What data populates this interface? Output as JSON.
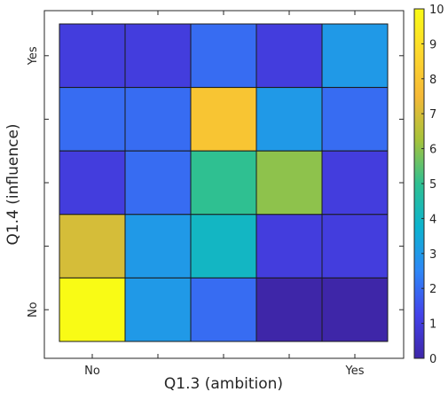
{
  "chart_data": {
    "type": "heatmap",
    "title": "",
    "xlabel": "Q1.3 (ambition)",
    "ylabel": "Q1.4 (influence)",
    "x_tick_labels": [
      "No",
      "",
      "",
      "",
      "Yes"
    ],
    "y_tick_labels_bottom_to_top": [
      "No",
      "",
      "",
      "",
      "Yes"
    ],
    "rows_top_to_bottom": [
      [
        1,
        1,
        2,
        1,
        3
      ],
      [
        2,
        2,
        8,
        3,
        2
      ],
      [
        1,
        2,
        5,
        6,
        1
      ],
      [
        7,
        3,
        4,
        1,
        1
      ],
      [
        10,
        3,
        2,
        0,
        0
      ]
    ],
    "color_limits": [
      0,
      10
    ],
    "colorbar_ticks": [
      "0",
      "1",
      "2",
      "3",
      "4",
      "5",
      "6",
      "7",
      "8",
      "9",
      "10"
    ],
    "colormap": "parula",
    "colormap_stops": [
      "#3e26a8",
      "#4443ea",
      "#2e87f7",
      "#0cb3cf",
      "#2fc091",
      "#a6c33b",
      "#f5b937",
      "#fdd82d",
      "#f9fb15"
    ]
  }
}
